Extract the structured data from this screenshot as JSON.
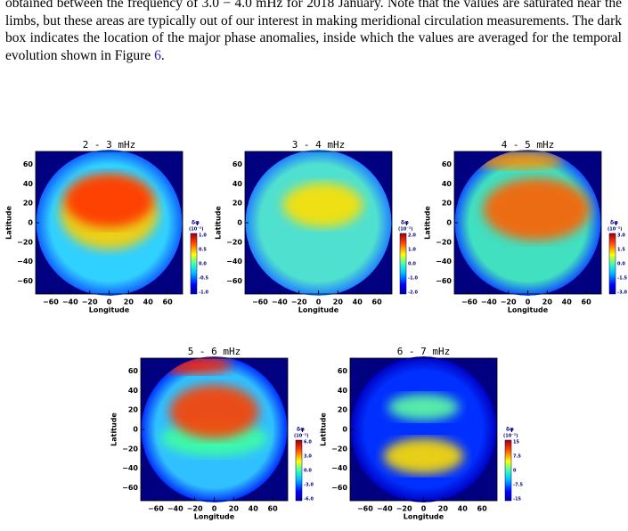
{
  "paragraph": {
    "text": "obtained between the frequency of 3.0 − 4.0 mHz for 2018 January. Note that the values are saturated near the limbs, but these areas are typically out of our interest in making meridional circulation measurements. The dark box indicates the location of the major phase anomalies, inside which the values are averaged for the temporal evolution shown in Figure ",
    "link": "6",
    "end": "."
  },
  "axes": {
    "xlabel": "Longitude",
    "ylabel": "Latitude",
    "xticks": [
      "−60",
      "−40",
      "−20",
      "0",
      "20",
      "40",
      "60"
    ],
    "yticks": [
      "60",
      "40",
      "20",
      "0",
      "−20",
      "−40",
      "−60"
    ],
    "cbar_symbol": "δφ",
    "cbar_unit": "(10⁻²)"
  },
  "panels": [
    {
      "title": "2 - 3 mHz",
      "cbar_ticks": [
        "1.0",
        "0.5",
        "0.0",
        "-0.5",
        "-1.0"
      ]
    },
    {
      "title": "3 - 4 mHz",
      "cbar_ticks": [
        "2.0",
        "1.0",
        "0.0",
        "-1.0",
        "-2.0"
      ]
    },
    {
      "title": "4 - 5 mHz",
      "cbar_ticks": [
        "3.0",
        "1.5",
        "0.0",
        "-1.5",
        "-3.0"
      ]
    },
    {
      "title": "5 - 6 mHz",
      "cbar_ticks": [
        "6.0",
        "3.0",
        "0.0",
        "-3.0",
        "-6.0"
      ]
    },
    {
      "title": "6 - 7 mHz",
      "cbar_ticks": [
        "15",
        "7.5",
        "0",
        "-7.5",
        "-15"
      ]
    }
  ]
}
